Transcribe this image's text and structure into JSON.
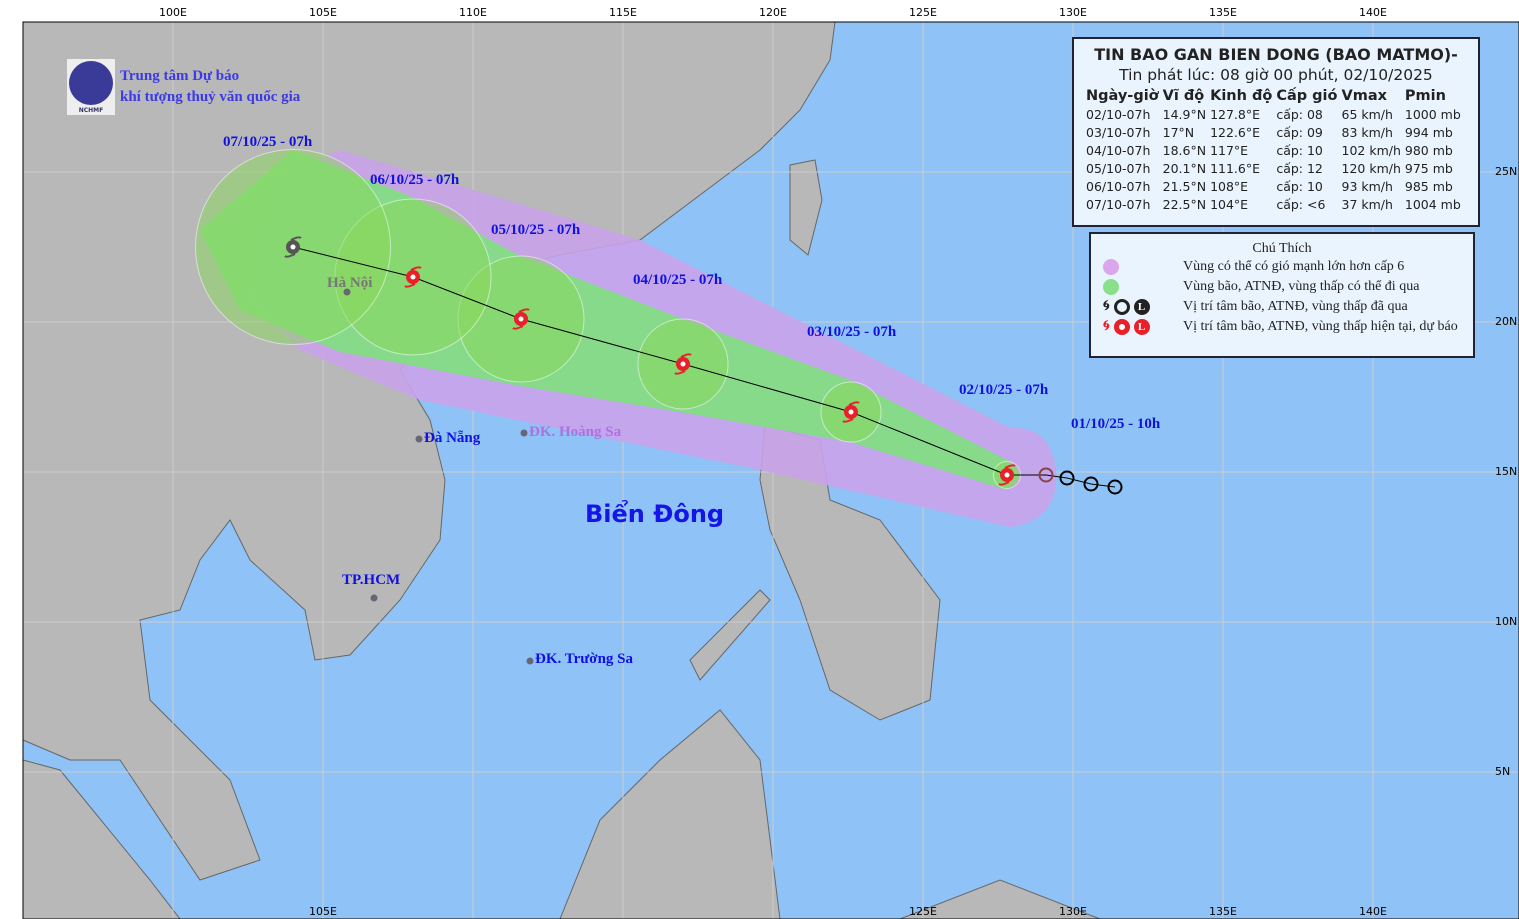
{
  "header": {
    "org_line1": "Trung tâm Dự báo",
    "org_line2": "khí tượng thuỷ văn quốc gia",
    "logo_text": "NCHMF"
  },
  "info": {
    "title": "TIN BAO GAN BIEN DONG (BAO MATMO)-",
    "issued": "Tin phát lúc: 08 giờ 00 phút, 02/10/2025",
    "columns": [
      "Ngày-giờ",
      "Vĩ độ",
      "Kinh độ",
      "Cấp gió",
      "Vmax",
      "Pmin"
    ],
    "rows": [
      [
        "02/10-07h",
        "14.9°N",
        "127.8°E",
        "cấp: 08",
        "65 km/h",
        "1000 mb"
      ],
      [
        "03/10-07h",
        "17°N",
        "122.6°E",
        "cấp: 09",
        "83 km/h",
        "994 mb"
      ],
      [
        "04/10-07h",
        "18.6°N",
        "117°E",
        "cấp: 10",
        "102 km/h",
        "980 mb"
      ],
      [
        "05/10-07h",
        "20.1°N",
        "111.6°E",
        "cấp: 12",
        "120 km/h",
        "975 mb"
      ],
      [
        "06/10-07h",
        "21.5°N",
        "108°E",
        "cấp: 10",
        "93 km/h",
        "985 mb"
      ],
      [
        "07/10-07h",
        "22.5°N",
        "104°E",
        "cấp: <6",
        "37 km/h",
        "1004 mb"
      ]
    ]
  },
  "legend": {
    "title": "Chú Thích",
    "items": [
      {
        "text": "Vùng có thể có gió mạnh lớn hơn cấp 6",
        "color": "#dba6ec"
      },
      {
        "text": "Vùng bão, ATNĐ, vùng thấp có thể đi qua",
        "color": "#88e088"
      },
      {
        "text": "Vị trí tâm bão, ATNĐ, vùng thấp đã qua",
        "color": "#222222"
      },
      {
        "text": "Vị trí tâm bão, ATNĐ, vùng thấp hiện tại, dự báo",
        "color": "#e8202a"
      }
    ]
  },
  "map": {
    "top_lon_labels": [
      "100E",
      "105E",
      "110E",
      "115E",
      "120E",
      "125E",
      "130E",
      "135E",
      "140E"
    ],
    "bottom_lon_labels": [
      "105E",
      "125E",
      "130E",
      "135E",
      "140E"
    ],
    "right_lat_labels": [
      "25N",
      "20N",
      "15N",
      "10N",
      "5N"
    ],
    "colors": {
      "sea": "#8fc3f7",
      "land": "#b8b8b8",
      "wind_zone": "#c9a3ea",
      "storm_zone": "#80e080"
    },
    "track": [
      {
        "label": "02/10/25 - 07h",
        "lon": 127.8,
        "lat": 14.9,
        "radius_deg": 0.45
      },
      {
        "label": "03/10/25 - 07h",
        "lon": 122.6,
        "lat": 17.0,
        "radius_deg": 1.0
      },
      {
        "label": "04/10/25 - 07h",
        "lon": 117.0,
        "lat": 18.6,
        "radius_deg": 1.5
      },
      {
        "label": "05/10/25 - 07h",
        "lon": 111.6,
        "lat": 20.1,
        "radius_deg": 2.1
      },
      {
        "label": "06/10/25 - 07h",
        "lon": 108.0,
        "lat": 21.5,
        "radius_deg": 2.6
      },
      {
        "label": "07/10/25 - 07h",
        "lon": 104.0,
        "lat": 22.5,
        "radius_deg": 3.25
      }
    ],
    "past": [
      {
        "label": "01/10/25 - 10h",
        "lon": 131.4,
        "lat": 14.5
      },
      {
        "lon": 130.6,
        "lat": 14.6
      },
      {
        "lon": 129.8,
        "lat": 14.8
      },
      {
        "lon": 129.1,
        "lat": 14.9
      }
    ],
    "places": [
      {
        "name": "Hà Nội",
        "lon": 105.8,
        "lat": 21.0
      },
      {
        "name": "Đà Nẵng",
        "lon": 108.2,
        "lat": 16.1
      },
      {
        "name": "ĐK. Hoàng Sa",
        "lon": 111.7,
        "lat": 16.3
      },
      {
        "name": "TP.HCM",
        "lon": 106.7,
        "lat": 10.8
      },
      {
        "name": "ĐK. Trường Sa",
        "lon": 111.9,
        "lat": 8.7
      }
    ],
    "sea_name": "Biển Đông"
  }
}
